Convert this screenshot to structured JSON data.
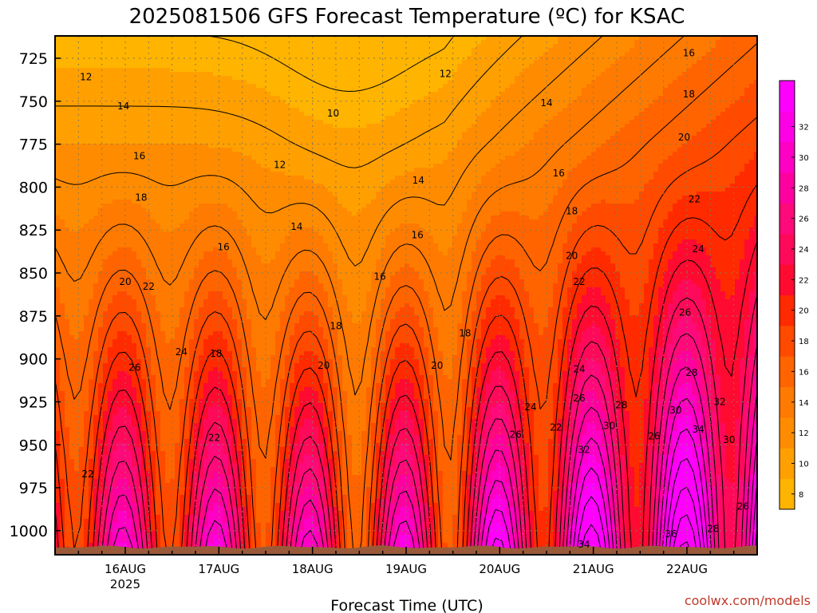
{
  "chart_data": {
    "type": "heatmap",
    "title": "2025081506 GFS Forecast Temperature (ºC) for KSAC",
    "xlabel": "Forecast Time (UTC)",
    "ylabel": "",
    "credit": "coolwx.com/models",
    "y_scale": "pressure (hPa), increasing downward",
    "ylim": [
      712,
      1014
    ],
    "x_ticks": [
      {
        "day": 16,
        "label": "16AUG",
        "sublabel": "2025"
      },
      {
        "day": 17,
        "label": "17AUG",
        "sublabel": ""
      },
      {
        "day": 18,
        "label": "18AUG",
        "sublabel": ""
      },
      {
        "day": 19,
        "label": "19AUG",
        "sublabel": ""
      },
      {
        "day": 20,
        "label": "20AUG",
        "sublabel": ""
      },
      {
        "day": 21,
        "label": "21AUG",
        "sublabel": ""
      },
      {
        "day": 22,
        "label": "22AUG",
        "sublabel": ""
      }
    ],
    "xlim_days": [
      15.25,
      22.75
    ],
    "y_ticks": [
      725,
      750,
      775,
      800,
      825,
      850,
      875,
      900,
      925,
      950,
      975,
      1000
    ],
    "colorbar": {
      "ticks": [
        8,
        10,
        12,
        14,
        16,
        18,
        20,
        22,
        24,
        26,
        28,
        30,
        32
      ],
      "levels": [
        7,
        9,
        11,
        13,
        15,
        17,
        19,
        21,
        23,
        25,
        27,
        29,
        31,
        33
      ],
      "colors": [
        "#ffb400",
        "#ffa000",
        "#ff8c00",
        "#ff7a00",
        "#ff6400",
        "#ff4a00",
        "#ff2a00",
        "#ff0a30",
        "#ff0a5a",
        "#ff0a7a",
        "#ff00a0",
        "#ff00c4",
        "#ff00e6",
        "#ff00ff"
      ]
    },
    "grid": true,
    "contour_labels": [
      {
        "text": "12",
        "day": 15.58,
        "p": 736
      },
      {
        "text": "14",
        "day": 15.98,
        "p": 753
      },
      {
        "text": "16",
        "day": 16.15,
        "p": 782
      },
      {
        "text": "18",
        "day": 16.17,
        "p": 806
      },
      {
        "text": "20",
        "day": 16.0,
        "p": 855
      },
      {
        "text": "22",
        "day": 16.25,
        "p": 858
      },
      {
        "text": "24",
        "day": 16.6,
        "p": 896
      },
      {
        "text": "26",
        "day": 16.1,
        "p": 905
      },
      {
        "text": "22",
        "day": 15.6,
        "p": 967
      },
      {
        "text": "10",
        "day": 18.22,
        "p": 757
      },
      {
        "text": "12",
        "day": 17.65,
        "p": 787
      },
      {
        "text": "14",
        "day": 17.83,
        "p": 823
      },
      {
        "text": "16",
        "day": 17.05,
        "p": 835
      },
      {
        "text": "18",
        "day": 16.97,
        "p": 897
      },
      {
        "text": "22",
        "day": 16.95,
        "p": 946
      },
      {
        "text": "18",
        "day": 18.25,
        "p": 881
      },
      {
        "text": "20",
        "day": 18.12,
        "p": 904
      },
      {
        "text": "12",
        "day": 19.42,
        "p": 734
      },
      {
        "text": "14",
        "day": 19.13,
        "p": 796
      },
      {
        "text": "16",
        "day": 19.12,
        "p": 828
      },
      {
        "text": "16",
        "day": 18.72,
        "p": 852
      },
      {
        "text": "18",
        "day": 19.63,
        "p": 885
      },
      {
        "text": "20",
        "day": 19.33,
        "p": 904
      },
      {
        "text": "14",
        "day": 20.5,
        "p": 751
      },
      {
        "text": "16",
        "day": 20.63,
        "p": 792
      },
      {
        "text": "18",
        "day": 20.77,
        "p": 814
      },
      {
        "text": "20",
        "day": 20.77,
        "p": 840
      },
      {
        "text": "22",
        "day": 20.85,
        "p": 855
      },
      {
        "text": "24",
        "day": 20.33,
        "p": 928
      },
      {
        "text": "22",
        "day": 20.6,
        "p": 940
      },
      {
        "text": "26",
        "day": 20.17,
        "p": 944
      },
      {
        "text": "24",
        "day": 20.85,
        "p": 906
      },
      {
        "text": "26",
        "day": 20.85,
        "p": 923
      },
      {
        "text": "28",
        "day": 21.3,
        "p": 927
      },
      {
        "text": "30",
        "day": 21.17,
        "p": 939
      },
      {
        "text": "32",
        "day": 20.9,
        "p": 953
      },
      {
        "text": "34",
        "day": 20.9,
        "p": 1008
      },
      {
        "text": "16",
        "day": 22.02,
        "p": 722
      },
      {
        "text": "18",
        "day": 22.02,
        "p": 746
      },
      {
        "text": "20",
        "day": 21.97,
        "p": 771
      },
      {
        "text": "22",
        "day": 22.08,
        "p": 807
      },
      {
        "text": "24",
        "day": 22.12,
        "p": 836
      },
      {
        "text": "26",
        "day": 21.98,
        "p": 873
      },
      {
        "text": "28",
        "day": 22.05,
        "p": 908
      },
      {
        "text": "30",
        "day": 21.88,
        "p": 930
      },
      {
        "text": "32",
        "day": 22.35,
        "p": 925
      },
      {
        "text": "34",
        "day": 22.12,
        "p": 941
      },
      {
        "text": "30",
        "day": 22.45,
        "p": 947
      },
      {
        "text": "26",
        "day": 21.65,
        "p": 945
      },
      {
        "text": "26",
        "day": 22.6,
        "p": 986
      },
      {
        "text": "28",
        "day": 22.28,
        "p": 999
      },
      {
        "text": "36",
        "day": 21.83,
        "p": 1002
      }
    ]
  },
  "colors": {
    "ground": "#9a5a3a",
    "axis": "#000000",
    "grid": "#8a7a50",
    "credit": "#c0392b"
  }
}
